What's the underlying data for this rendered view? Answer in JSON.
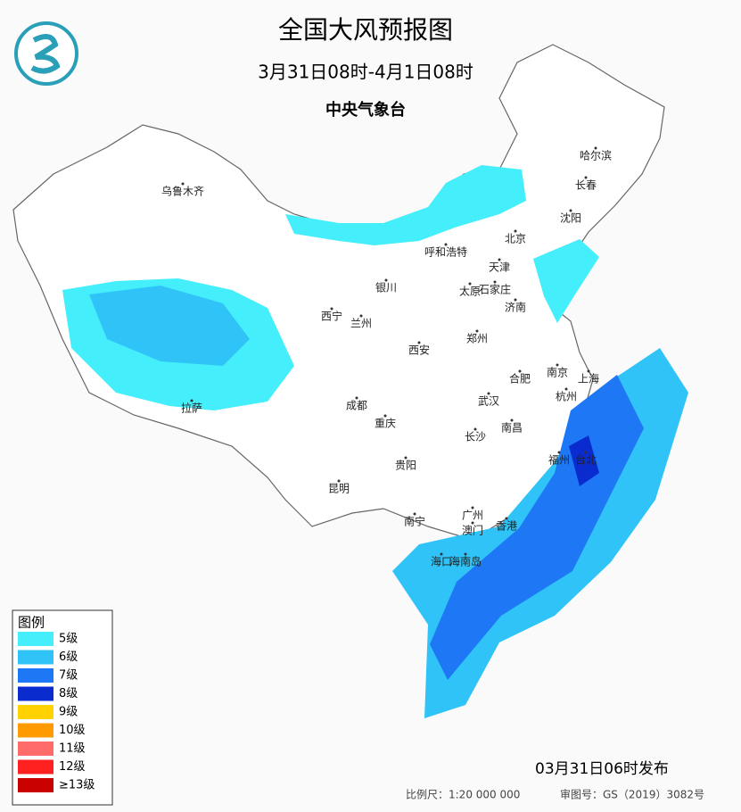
{
  "header": {
    "title": "全国大风预报图",
    "period": "3月31日08时-4月1日08时",
    "issuer": "中央气象台"
  },
  "legend": {
    "title": "图例",
    "items": [
      {
        "label": "5级",
        "color": "#44eefa"
      },
      {
        "label": "6级",
        "color": "#2fc3f7"
      },
      {
        "label": "7级",
        "color": "#1e78f5"
      },
      {
        "label": "8级",
        "color": "#0a2ccf"
      },
      {
        "label": "9级",
        "color": "#ffd200"
      },
      {
        "label": "10级",
        "color": "#ff9a00"
      },
      {
        "label": "11级",
        "color": "#ff6a6a"
      },
      {
        "label": "12级",
        "color": "#ff2020"
      },
      {
        "label": "≥13级",
        "color": "#c80000"
      }
    ]
  },
  "cities": [
    "乌鲁木齐",
    "哈尔滨",
    "长春",
    "沈阳",
    "北京",
    "天津",
    "呼和浩特",
    "银川",
    "太原",
    "石家庄",
    "济南",
    "西宁",
    "兰州",
    "郑州",
    "西安",
    "南京",
    "上海",
    "合肥",
    "杭州",
    "拉萨",
    "成都",
    "武汉",
    "重庆",
    "南昌",
    "长沙",
    "福州",
    "台北",
    "贵阳",
    "昆明",
    "南宁",
    "广州",
    "澳门",
    "香港",
    "海口",
    "海南岛"
  ],
  "footer": {
    "issued": "03月31日06时发布",
    "scale": "比例尺：1:20 000 000",
    "review": "审图号：GS（2019）3082号"
  }
}
